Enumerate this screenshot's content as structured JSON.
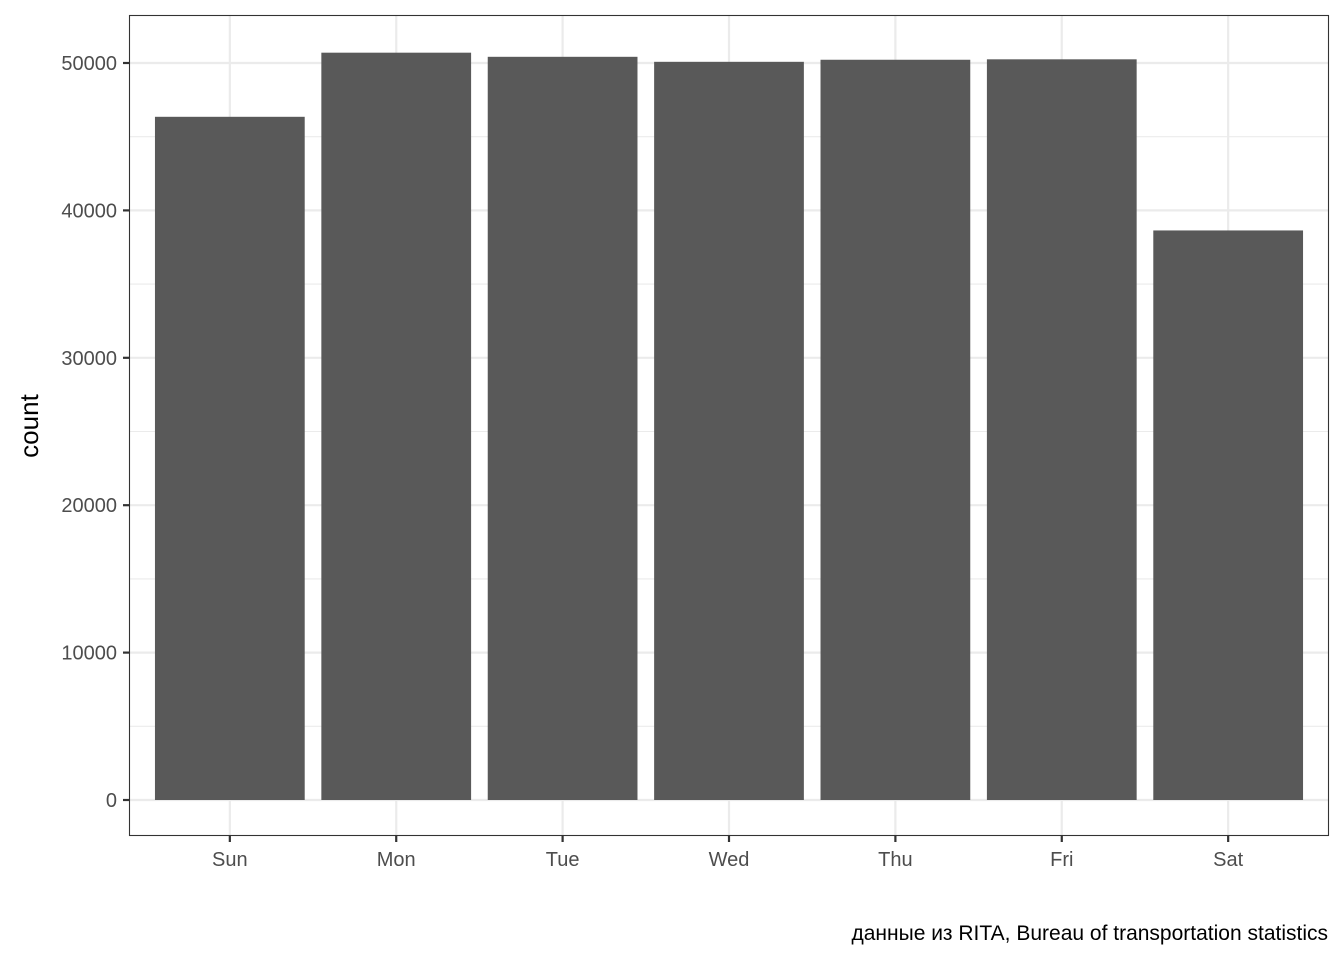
{
  "chart_data": {
    "type": "bar",
    "categories": [
      "Sun",
      "Mon",
      "Tue",
      "Wed",
      "Thu",
      "Fri",
      "Sat"
    ],
    "values": [
      46350,
      50700,
      50420,
      50080,
      50220,
      50250,
      38640
    ],
    "title": "",
    "xlabel": "",
    "ylabel": "count",
    "caption": "данные из RITA, Bureau of transportation statistics",
    "ylim": [
      0,
      53170
    ],
    "yticks": [
      0,
      10000,
      20000,
      30000,
      40000,
      50000
    ],
    "ytick_labels": [
      "0",
      "10000",
      "20000",
      "30000",
      "40000",
      "50000"
    ],
    "grid": true,
    "legend": "none",
    "bar_color": "#595959"
  }
}
